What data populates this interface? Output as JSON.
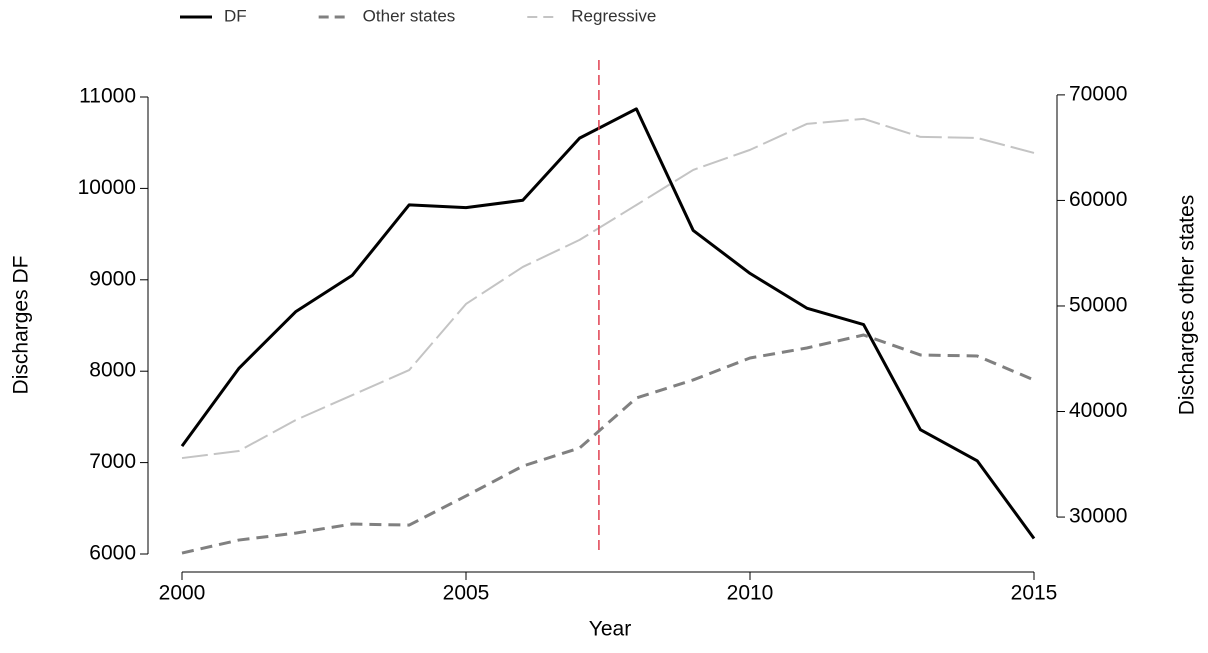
{
  "chart_data": {
    "type": "line",
    "x": [
      2000,
      2001,
      2002,
      2003,
      2004,
      2005,
      2006,
      2007,
      2008,
      2009,
      2010,
      2011,
      2012,
      2013,
      2014,
      2015
    ],
    "series": [
      {
        "name": "DF",
        "color": "#000000",
        "linestyle": "solid",
        "axis": "y",
        "values": [
          7180,
          8030,
          8650,
          9050,
          9820,
          9790,
          9870,
          10550,
          10870,
          9540,
          9070,
          8690,
          8510,
          7360,
          7020,
          6170
        ]
      },
      {
        "name": "Other states",
        "color": "#808080",
        "linestyle": "dashed",
        "axis": "y2",
        "values": [
          26590,
          27820,
          28480,
          29340,
          29240,
          32000,
          34830,
          36540,
          41280,
          42990,
          45070,
          46020,
          47250,
          45360,
          45260,
          42990
        ]
      },
      {
        "name": "Regressive",
        "color": "#c4c4c4",
        "linestyle": "longdash",
        "axis": "y2",
        "values": [
          35590,
          36260,
          39190,
          41560,
          43930,
          50190,
          53700,
          56260,
          59570,
          62890,
          64790,
          67250,
          67730,
          66020,
          65920,
          64500
        ]
      }
    ],
    "x_label": "Year",
    "y_label": "Discharges DF",
    "y2_label": "Discharges other states",
    "xlim": [
      2000,
      2015
    ],
    "xticks": [
      2000,
      2005,
      2010,
      2015
    ],
    "ylim": [
      6000,
      11000
    ],
    "yticks": [
      6000,
      7000,
      8000,
      9000,
      10000,
      11000
    ],
    "y2lim": [
      26500,
      69800
    ],
    "y2ticks": [
      30000,
      40000,
      50000,
      60000,
      70000
    ],
    "vline": 2007.34,
    "vline_color": "#e04050",
    "grid": false,
    "legend": "top"
  }
}
